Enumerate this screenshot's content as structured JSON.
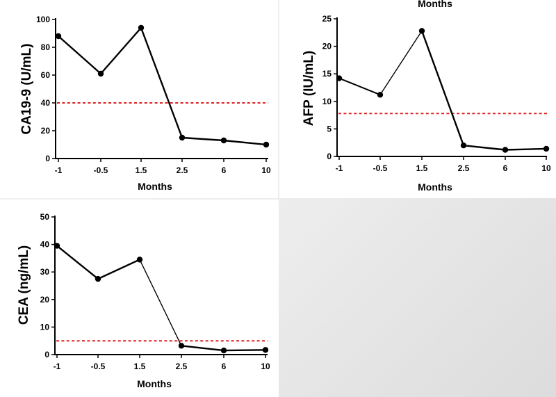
{
  "chart_data": [
    {
      "id": "ca199",
      "type": "line",
      "ylabel": "CA19-9 (U/mL)",
      "xlabel": "Months",
      "categories": [
        "-1",
        "-0.5",
        "1.5",
        "2.5",
        "6",
        "10"
      ],
      "values": [
        88,
        61,
        94,
        15,
        13,
        10
      ],
      "ylim": [
        0,
        100
      ],
      "yticks": [
        0,
        20,
        40,
        60,
        80,
        100
      ],
      "reference_line": 40,
      "line_color": "#000000",
      "reference_color": "#e02020"
    },
    {
      "id": "afp",
      "type": "line",
      "ylabel": "AFP (IU/mL)",
      "xlabel": "Months",
      "top_text": "Months",
      "categories": [
        "-1",
        "-0.5",
        "1.5",
        "2.5",
        "6",
        "10"
      ],
      "values": [
        14.2,
        11.2,
        22.8,
        2.0,
        1.2,
        1.4
      ],
      "ylim": [
        0,
        25
      ],
      "yticks": [
        0,
        5,
        10,
        15,
        20,
        25
      ],
      "reference_line": 7.8,
      "line_color": "#000000",
      "reference_color": "#e02020"
    },
    {
      "id": "cea",
      "type": "line",
      "ylabel": "CEA (ng/mL)",
      "xlabel": "Months",
      "categories": [
        "-1",
        "-0.5",
        "1.5",
        "2.5",
        "6",
        "10"
      ],
      "values": [
        39.5,
        27.5,
        34.5,
        3.2,
        1.5,
        1.7
      ],
      "ylim": [
        0,
        50
      ],
      "yticks": [
        0,
        10,
        20,
        30,
        40,
        50
      ],
      "reference_line": 5,
      "line_color": "#000000",
      "reference_color": "#e02020"
    }
  ]
}
